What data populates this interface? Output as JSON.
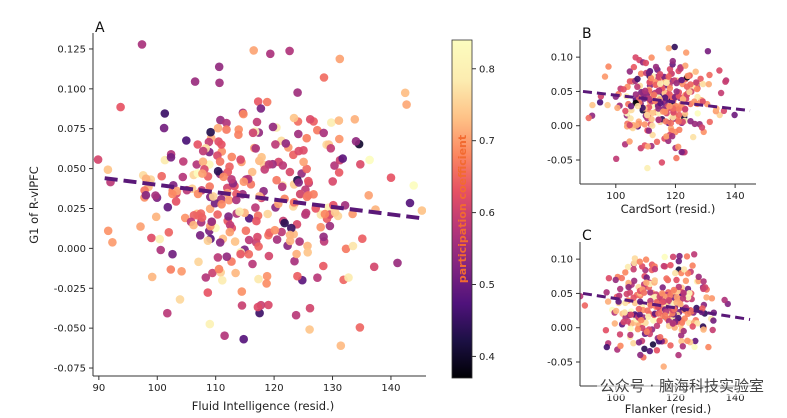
{
  "chart_data": [
    {
      "panel": "A",
      "type": "scatter",
      "xlabel": "Fluid Intelligence (resid.)",
      "ylabel": "G1 of R-vlPFC",
      "xlim": [
        89,
        146
      ],
      "ylim": [
        -0.08,
        0.135
      ],
      "xticks": [
        90,
        100,
        110,
        120,
        130,
        140
      ],
      "yticks": [
        "-0.075",
        "-0.050",
        "-0.025",
        "0.000",
        "0.025",
        "0.050",
        "0.075",
        "0.100",
        "0.125"
      ],
      "n_points": 320,
      "x_mean": 117,
      "x_sd": 11,
      "y_mean": 0.032,
      "y_sd": 0.033,
      "fit_line": {
        "x": [
          91,
          145
        ],
        "y": [
          0.044,
          0.019
        ]
      }
    },
    {
      "panel": "B",
      "type": "scatter",
      "xlabel": "CardSort (resid.)",
      "xlim": [
        88,
        147
      ],
      "ylim": [
        -0.085,
        0.125
      ],
      "xticks": [
        100,
        120,
        140
      ],
      "yticks": [
        "-0.05",
        "0.00",
        "0.05",
        "0.10"
      ],
      "n_points": 300,
      "x_mean": 115,
      "x_sd": 9,
      "y_mean": 0.033,
      "y_sd": 0.032,
      "fit_line": {
        "x": [
          89,
          145
        ],
        "y": [
          0.05,
          0.022
        ]
      }
    },
    {
      "panel": "C",
      "type": "scatter",
      "xlabel": "Flanker (resid.)",
      "xlim": [
        88,
        147
      ],
      "ylim": [
        -0.085,
        0.125
      ],
      "xticks": [
        100,
        120,
        140
      ],
      "yticks": [
        "-0.05",
        "0.00",
        "0.05",
        "0.10"
      ],
      "n_points": 300,
      "x_mean": 116,
      "x_sd": 9,
      "y_mean": 0.033,
      "y_sd": 0.032,
      "fit_line": {
        "x": [
          89,
          145
        ],
        "y": [
          0.05,
          0.012
        ]
      }
    }
  ],
  "colorbar": {
    "label": "participation coefficient",
    "colormap": "magma",
    "range": [
      0.37,
      0.84
    ],
    "ticks": [
      "0.4",
      "0.5",
      "0.6",
      "0.7",
      "0.8"
    ]
  },
  "fit_line_color": "#5a1878",
  "watermark": "公众号 · 脑海科技实验室"
}
